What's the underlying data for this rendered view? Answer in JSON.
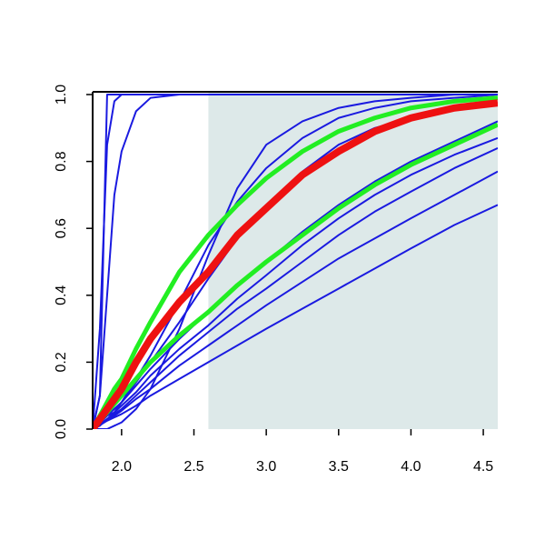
{
  "chart_data": {
    "type": "line",
    "x": [
      1.8,
      1.85,
      1.9,
      1.95,
      2.0,
      2.1,
      2.2,
      2.4,
      2.6,
      2.8,
      3.0,
      3.25,
      3.5,
      3.75,
      4.0,
      4.3,
      4.6
    ],
    "xlim": [
      1.8,
      4.6
    ],
    "ylim": [
      0,
      1
    ],
    "xticks": [
      {
        "value": 2,
        "label": "2.0"
      },
      2.5,
      {
        "value": 3,
        "label": "3.0"
      },
      3.5,
      {
        "value": 4,
        "label": "4.0"
      },
      4.5
    ],
    "yticks": [
      {
        "value": 0,
        "label": "0.0"
      },
      0.2,
      0.4,
      0.6,
      0.8,
      {
        "value": 1,
        "label": "1.0"
      }
    ],
    "shade": {
      "x": 2.6,
      "color": "#dde9e9"
    },
    "series": [
      {
        "color": "#1a1ae0",
        "line_width": 2,
        "values": [
          0,
          0.1,
          1,
          1,
          1,
          1,
          1,
          1,
          1,
          1,
          1,
          1,
          1,
          1,
          1,
          1,
          1
        ]
      },
      {
        "color": "#1a1ae0",
        "line_width": 2,
        "values": [
          0,
          0.3,
          0.85,
          0.98,
          1,
          1,
          1,
          1,
          1,
          1,
          1,
          1,
          1,
          1,
          1,
          1,
          1
        ]
      },
      {
        "color": "#1a1ae0",
        "line_width": 2,
        "values": [
          0,
          0.1,
          0.4,
          0.7,
          0.83,
          0.95,
          0.99,
          1,
          1,
          1,
          1,
          1,
          1,
          1,
          1,
          1,
          1
        ]
      },
      {
        "color": "#1a1ae0",
        "line_width": 2,
        "values": [
          0,
          0,
          0,
          0.01,
          0.02,
          0.06,
          0.12,
          0.3,
          0.52,
          0.72,
          0.85,
          0.92,
          0.96,
          0.98,
          0.99,
          1,
          1
        ]
      },
      {
        "color": "#1a1ae0",
        "line_width": 2,
        "values": [
          0,
          0.01,
          0.03,
          0.05,
          0.08,
          0.15,
          0.22,
          0.38,
          0.55,
          0.68,
          0.78,
          0.87,
          0.93,
          0.96,
          0.98,
          0.99,
          1
        ]
      },
      {
        "color": "#1a1ae0",
        "line_width": 2,
        "values": [
          0,
          0.02,
          0.04,
          0.06,
          0.08,
          0.14,
          0.2,
          0.32,
          0.45,
          0.57,
          0.67,
          0.77,
          0.85,
          0.9,
          0.93,
          0.96,
          0.975
        ]
      },
      {
        "color": "#1a1ae0",
        "line_width": 2,
        "values": [
          0,
          0.02,
          0.04,
          0.06,
          0.08,
          0.13,
          0.18,
          0.27,
          0.35,
          0.43,
          0.5,
          0.59,
          0.67,
          0.74,
          0.8,
          0.86,
          0.92
        ]
      },
      {
        "color": "#1a1ae0",
        "line_width": 2,
        "values": [
          0,
          0.02,
          0.04,
          0.05,
          0.07,
          0.11,
          0.16,
          0.24,
          0.31,
          0.39,
          0.46,
          0.55,
          0.63,
          0.7,
          0.76,
          0.82,
          0.87
        ]
      },
      {
        "color": "#1a1ae0",
        "line_width": 2,
        "values": [
          0,
          0.015,
          0.03,
          0.045,
          0.06,
          0.1,
          0.14,
          0.22,
          0.29,
          0.36,
          0.42,
          0.5,
          0.58,
          0.65,
          0.71,
          0.78,
          0.84
        ]
      },
      {
        "color": "#1a1ae0",
        "line_width": 2,
        "values": [
          0,
          0.015,
          0.03,
          0.04,
          0.055,
          0.09,
          0.12,
          0.19,
          0.25,
          0.31,
          0.37,
          0.44,
          0.51,
          0.57,
          0.63,
          0.7,
          0.77
        ]
      },
      {
        "color": "#1a1ae0",
        "line_width": 2,
        "values": [
          0,
          0.012,
          0.025,
          0.035,
          0.045,
          0.07,
          0.1,
          0.15,
          0.2,
          0.25,
          0.3,
          0.36,
          0.42,
          0.48,
          0.54,
          0.61,
          0.67
        ]
      },
      {
        "color": "#22ee22",
        "line_width": 5,
        "values": [
          0,
          0.04,
          0.08,
          0.12,
          0.15,
          0.24,
          0.32,
          0.47,
          0.58,
          0.67,
          0.75,
          0.83,
          0.89,
          0.93,
          0.96,
          0.98,
          0.99
        ]
      },
      {
        "color": "#22ee22",
        "line_width": 5,
        "values": [
          0,
          0.025,
          0.05,
          0.075,
          0.1,
          0.15,
          0.2,
          0.28,
          0.35,
          0.43,
          0.5,
          0.58,
          0.66,
          0.73,
          0.79,
          0.85,
          0.91
        ]
      },
      {
        "color": "#ee1111",
        "line_width": 8,
        "values": [
          0,
          0.03,
          0.06,
          0.09,
          0.12,
          0.2,
          0.27,
          0.38,
          0.47,
          0.58,
          0.66,
          0.76,
          0.83,
          0.89,
          0.93,
          0.96,
          0.975
        ]
      }
    ]
  }
}
